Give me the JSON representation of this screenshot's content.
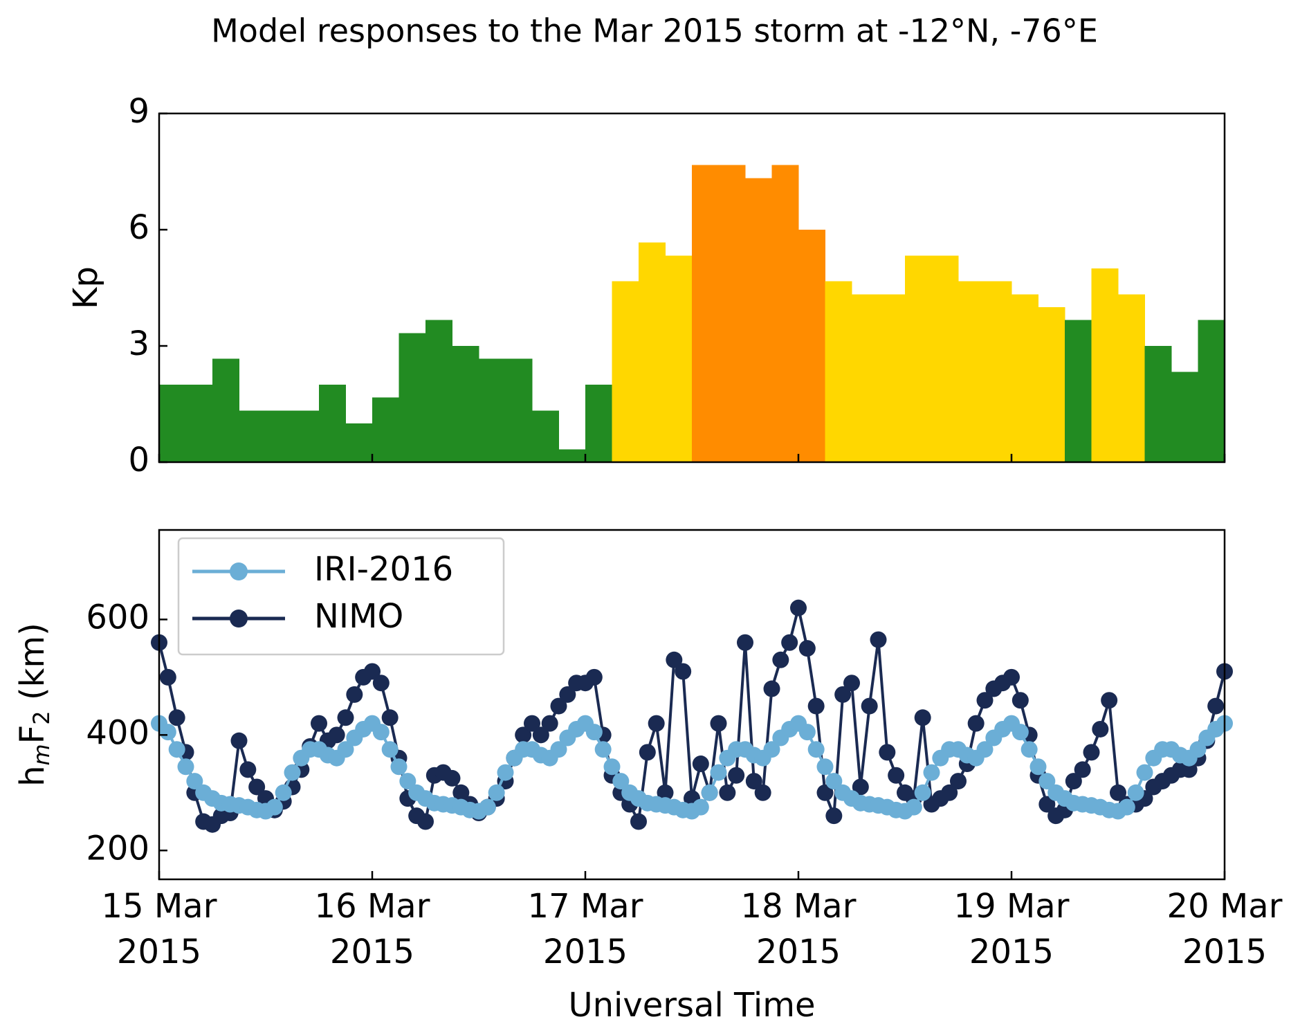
{
  "title": "Model responses to the Mar 2015 storm at -12°N, -76°E",
  "chart_data": [
    {
      "type": "bar",
      "ylabel": "Kp",
      "xlim": [
        "2015-03-15",
        "2015-03-20"
      ],
      "xticks": [
        "2015-03-15",
        "2015-03-16",
        "2015-03-17",
        "2015-03-18",
        "2015-03-19",
        "2015-03-20"
      ],
      "ylim": [
        0,
        9
      ],
      "yticks": [
        0,
        3,
        6,
        9
      ],
      "values": [
        2,
        2,
        2.67,
        1.33,
        1.33,
        1.33,
        2,
        1,
        1.67,
        3.33,
        3.67,
        3,
        2.67,
        2.67,
        1.33,
        0.33,
        2,
        4.67,
        5.67,
        5.33,
        7.67,
        7.67,
        7.33,
        7.67,
        6,
        4.67,
        4.33,
        4.33,
        5.33,
        5.33,
        4.67,
        4.67,
        4.33,
        4,
        3.67,
        5,
        4.33,
        3,
        2.33,
        3.67
      ],
      "colors": [
        "#228b22",
        "#228b22",
        "#228b22",
        "#228b22",
        "#228b22",
        "#228b22",
        "#228b22",
        "#228b22",
        "#228b22",
        "#228b22",
        "#228b22",
        "#228b22",
        "#228b22",
        "#228b22",
        "#228b22",
        "#228b22",
        "#228b22",
        "#ffd700",
        "#ffd700",
        "#ffd700",
        "#ff8c00",
        "#ff8c00",
        "#ff8c00",
        "#ff8c00",
        "#ff8c00",
        "#ffd700",
        "#ffd700",
        "#ffd700",
        "#ffd700",
        "#ffd700",
        "#ffd700",
        "#ffd700",
        "#ffd700",
        "#ffd700",
        "#228b22",
        "#ffd700",
        "#ffd700",
        "#228b22",
        "#228b22",
        "#228b22"
      ]
    },
    {
      "type": "line",
      "ylabel": "hmF2 (km)",
      "xlabel": "Universal Time",
      "legend": "upper left",
      "xlim": [
        "2015-03-15",
        "2015-03-20"
      ],
      "xticks": [
        {
          "value": "2015-03-15",
          "label": "15 Mar 2015"
        },
        {
          "value": "2015-03-16",
          "label": "16 Mar 2015"
        },
        {
          "value": "2015-03-17",
          "label": "17 Mar 2015"
        },
        {
          "value": "2015-03-18",
          "label": "18 Mar 2015"
        },
        {
          "value": "2015-03-19",
          "label": "19 Mar 2015"
        },
        {
          "value": "2015-03-20",
          "label": "20 Mar 2015"
        }
      ],
      "ylim": [
        150,
        755
      ],
      "yticks": [
        200,
        400,
        600
      ],
      "series": [
        {
          "name": "IRI-2016",
          "color": "#6baed6",
          "values": [
            420,
            405,
            375,
            345,
            320,
            300,
            290,
            282,
            280,
            278,
            275,
            270,
            268,
            275,
            300,
            335,
            360,
            375,
            375,
            365,
            360,
            375,
            395,
            410,
            420,
            405,
            375,
            345,
            320,
            300,
            290,
            282,
            280,
            278,
            275,
            270,
            268,
            275,
            300,
            335,
            360,
            375,
            375,
            365,
            360,
            375,
            395,
            410,
            420,
            405,
            375,
            345,
            320,
            300,
            290,
            282,
            280,
            278,
            275,
            270,
            268,
            275,
            300,
            335,
            360,
            375,
            375,
            365,
            360,
            375,
            395,
            410,
            420,
            405,
            375,
            345,
            320,
            300,
            290,
            282,
            280,
            278,
            275,
            270,
            268,
            275,
            300,
            335,
            360,
            375,
            375,
            365,
            360,
            375,
            395,
            410,
            420,
            405,
            375,
            345,
            320,
            300,
            290,
            282,
            280,
            278,
            275,
            270,
            268,
            275,
            300,
            335,
            360,
            375,
            375,
            365,
            360,
            375,
            395,
            410,
            420
          ]
        },
        {
          "name": "NIMO",
          "color": "#1a2a52",
          "values": [
            560,
            500,
            430,
            370,
            300,
            250,
            245,
            260,
            265,
            390,
            340,
            310,
            290,
            270,
            285,
            310,
            340,
            380,
            420,
            390,
            400,
            430,
            470,
            500,
            510,
            490,
            430,
            360,
            290,
            260,
            250,
            330,
            335,
            325,
            300,
            280,
            265,
            275,
            290,
            320,
            360,
            400,
            420,
            400,
            420,
            450,
            470,
            490,
            490,
            500,
            400,
            330,
            300,
            280,
            250,
            370,
            420,
            300,
            530,
            510,
            290,
            350,
            300,
            420,
            300,
            330,
            560,
            320,
            300,
            480,
            530,
            560,
            620,
            550,
            450,
            300,
            260,
            470,
            490,
            310,
            450,
            565,
            370,
            330,
            300,
            290,
            430,
            280,
            290,
            300,
            320,
            350,
            420,
            460,
            480,
            490,
            500,
            460,
            400,
            330,
            280,
            260,
            270,
            320,
            340,
            370,
            410,
            460,
            300,
            280,
            280,
            290,
            310,
            320,
            330,
            340,
            340,
            360,
            390,
            450,
            510
          ]
        }
      ]
    }
  ]
}
